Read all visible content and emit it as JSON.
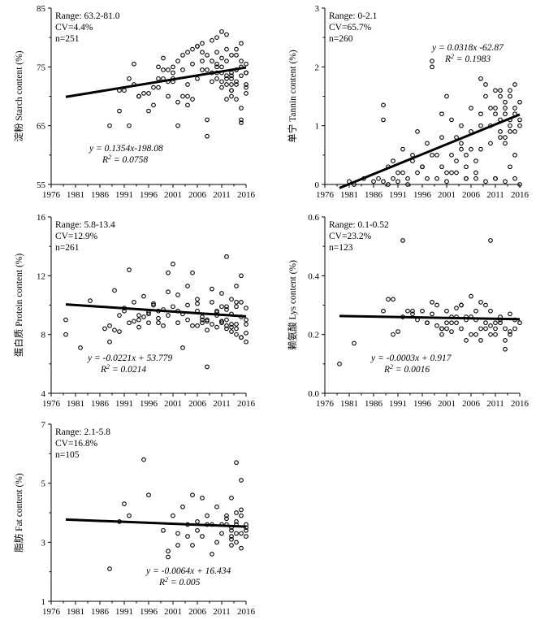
{
  "chart_data": [
    {
      "type": "scatter",
      "ylabel": "淀粉 Starch content (%)",
      "xlim": [
        1976,
        2016
      ],
      "ylim": [
        55,
        85
      ],
      "xticks": [
        1976,
        1981,
        1986,
        1991,
        1996,
        2001,
        2006,
        2011,
        2016
      ],
      "yticks": [
        55,
        65,
        75,
        85
      ],
      "annotations": [
        "Range: 63.2-81.0",
        "CV=4.4%",
        "n=251"
      ],
      "equation": "y = 0.1354x-198.08",
      "r2": "R2 = 0.0758",
      "trend": {
        "x": [
          1979,
          2016
        ],
        "y": [
          69.9,
          74.9
        ]
      },
      "x": [
        1988,
        1990,
        1991,
        1992,
        1993,
        1994,
        1996,
        1997,
        1998,
        1999,
        2000,
        2001,
        2002,
        2003,
        2004,
        2005,
        2006,
        2007,
        2008,
        2009,
        2010,
        2011,
        2012,
        2013,
        2014,
        2015,
        2016,
        1990,
        1993,
        1995,
        1997,
        1999,
        2001,
        2003,
        2005,
        2007,
        2009,
        2011,
        2013,
        2015,
        1998,
        2000,
        2002,
        2004,
        2006,
        2008,
        2010,
        2012,
        2014,
        2016,
        1996,
        1999,
        2002,
        2005,
        2008,
        2011,
        2014,
        2015,
        2013,
        2012,
        2010,
        2009,
        2007,
        2006,
        2004,
        2003,
        2001,
        2000,
        2015,
        2014,
        2013,
        2012,
        2011,
        2016,
        2015,
        2014,
        2013,
        2012,
        2008,
        2010,
        2011,
        2012,
        2013,
        2014,
        2015,
        2016,
        2009,
        2010,
        2011,
        2012,
        2013,
        2014,
        2015,
        2016,
        1992,
        1994,
        1998,
        2001,
        2004,
        2007,
        2010,
        2013,
        2016
      ],
      "y": [
        65.0,
        67.5,
        71.0,
        65.0,
        75.5,
        70.0,
        67.5,
        71.5,
        73.0,
        76.5,
        70.0,
        75.0,
        69.0,
        77.0,
        72.0,
        78.0,
        73.0,
        79.0,
        66.0,
        76.0,
        80.0,
        81.0,
        78.0,
        74.0,
        78.0,
        79.0,
        72.0,
        71.0,
        72.0,
        70.5,
        68.5,
        74.5,
        73.0,
        74.5,
        75.5,
        76.0,
        74.0,
        75.0,
        73.5,
        75.0,
        71.5,
        72.5,
        76.0,
        77.5,
        78.5,
        63.2,
        77.5,
        80.5,
        77.0,
        75.5,
        70.5,
        73.0,
        65.0,
        69.5,
        77.0,
        72.5,
        74.5,
        66.0,
        71.0,
        69.5,
        75.5,
        72.5,
        77.5,
        78.5,
        68.5,
        70.0,
        74.0,
        74.5,
        65.5,
        72.0,
        71.0,
        73.5,
        74.0,
        70.5,
        68.0,
        69.5,
        72.0,
        76.0,
        74.5,
        73.0,
        71.5,
        73.0,
        70.0,
        72.5,
        73.5,
        71.5,
        79.5,
        74.0,
        76.5,
        72.0,
        77.0,
        74.5,
        76.0,
        74.0,
        73.0,
        70.0,
        75.0,
        72.5,
        70.0,
        74.5,
        75.0,
        73.0,
        74.0
      ]
    },
    {
      "type": "scatter",
      "ylabel": "单宁 Tannin content (%)",
      "xlim": [
        1976,
        2016
      ],
      "ylim": [
        0,
        3
      ],
      "xticks": [
        1976,
        1981,
        1986,
        1991,
        1996,
        2001,
        2006,
        2011,
        2016
      ],
      "yticks": [
        0,
        1,
        2,
        3
      ],
      "annotations": [
        "Range: 0-2.1",
        "CV=65.7%",
        "n=260"
      ],
      "equation": "y = 0.0318x -62.87",
      "r2": "R2 = 0.1983",
      "trend": {
        "x": [
          1979,
          2016
        ],
        "y": [
          -0.06,
          1.19
        ]
      },
      "x": [
        1981,
        1982,
        1984,
        1986,
        1988,
        1988,
        1989,
        1990,
        1991,
        1992,
        1993,
        1994,
        1995,
        1996,
        1997,
        1998,
        1998,
        1999,
        2000,
        2000,
        2001,
        2002,
        2003,
        2004,
        2005,
        2005,
        2006,
        2007,
        2008,
        2008,
        2009,
        2010,
        2011,
        2011,
        2012,
        2012,
        2013,
        2013,
        2014,
        2014,
        2015,
        2015,
        2016,
        2016,
        1987,
        1989,
        1991,
        1993,
        1995,
        1997,
        1999,
        2001,
        2003,
        2005,
        2007,
        2009,
        2011,
        2013,
        2015,
        2016,
        2014,
        2012,
        2010,
        2008,
        2006,
        2004,
        2002,
        2000,
        1998,
        1996,
        1994,
        1992,
        1990,
        1988,
        2015,
        2014,
        2013,
        2012,
        2011,
        2010,
        2009,
        2008,
        2007,
        2006,
        2005,
        2004,
        2003,
        2002,
        2001,
        2015,
        2014,
        2013,
        2012,
        2011,
        2016,
        2015,
        2014,
        2013
      ],
      "y": [
        0.05,
        0.0,
        0.1,
        0.05,
        1.35,
        1.1,
        0.3,
        0.4,
        0.2,
        0.6,
        0.1,
        0.5,
        0.9,
        0.3,
        0.7,
        2.0,
        2.1,
        0.5,
        1.2,
        0.3,
        1.5,
        0.2,
        0.8,
        1.0,
        0.1,
        0.5,
        1.3,
        0.2,
        1.8,
        0.6,
        1.7,
        1.0,
        1.6,
        0.1,
        1.5,
        0.9,
        1.2,
        0.7,
        1.6,
        0.3,
        1.7,
        0.5,
        1.4,
        1.0,
        0.1,
        0.0,
        0.05,
        0.0,
        0.2,
        0.1,
        0.1,
        0.05,
        0.2,
        0.1,
        0.1,
        0.05,
        0.1,
        0.05,
        0.1,
        0.0,
        1.1,
        0.8,
        1.3,
        1.0,
        0.9,
        0.6,
        1.1,
        0.8,
        0.5,
        0.3,
        0.4,
        0.2,
        0.1,
        0.05,
        1.2,
        0.9,
        1.4,
        1.1,
        1.3,
        0.7,
        1.5,
        1.2,
        0.4,
        0.6,
        0.3,
        0.7,
        0.4,
        0.5,
        0.2,
        0.9,
        1.5,
        1.3,
        1.6,
        1.2,
        1.1,
        1.3,
        1.0,
        0.8
      ]
    },
    {
      "type": "scatter",
      "ylabel": "蛋白质 Protein content (%)",
      "xlim": [
        1976,
        2016
      ],
      "ylim": [
        4,
        16
      ],
      "xticks": [
        1976,
        1981,
        1986,
        1991,
        1996,
        2001,
        2006,
        2011,
        2016
      ],
      "yticks": [
        4,
        8,
        12,
        16
      ],
      "annotations": [
        "Range: 5.8-13.4",
        "CV=12.9%",
        "n=261"
      ],
      "equation": "y = -0.0221x + 53.779",
      "r2": "R2 = 0.0214",
      "trend": {
        "x": [
          1979,
          2016
        ],
        "y": [
          10.05,
          9.23
        ]
      },
      "x": [
        1979,
        1979,
        1982,
        1984,
        1987,
        1988,
        1989,
        1990,
        1991,
        1992,
        1993,
        1994,
        1995,
        1996,
        1997,
        1998,
        1999,
        2000,
        2001,
        2002,
        2003,
        2004,
        2005,
        2006,
        2007,
        2008,
        2009,
        2010,
        2011,
        2012,
        2013,
        2014,
        2015,
        2016,
        1988,
        1990,
        1992,
        1994,
        1996,
        1998,
        2000,
        2002,
        2004,
        2006,
        2008,
        2010,
        2012,
        2014,
        2016,
        2015,
        2014,
        2013,
        2012,
        2011,
        2010,
        2009,
        2008,
        2007,
        2006,
        2005,
        2004,
        2003,
        2002,
        2001,
        2000,
        1999,
        1998,
        1997,
        1996,
        1995,
        1994,
        1993,
        1991,
        1989,
        2016,
        2015,
        2014,
        2013,
        2012,
        2011,
        2010,
        2009,
        2008,
        2007,
        2006,
        2016,
        2015,
        2014,
        2013,
        2012,
        2011,
        2016,
        2015,
        2014,
        2013,
        2012,
        2011
      ],
      "y": [
        9.0,
        8.0,
        7.1,
        10.3,
        8.4,
        8.6,
        11.0,
        8.2,
        9.8,
        12.4,
        10.2,
        9.0,
        10.6,
        8.8,
        10.0,
        9.6,
        8.6,
        10.9,
        12.8,
        10.7,
        7.1,
        9.0,
        12.2,
        10.4,
        9.0,
        5.8,
        11.1,
        9.3,
        10.8,
        13.3,
        8.7,
        11.3,
        12.0,
        9.0,
        7.5,
        9.3,
        8.8,
        9.3,
        9.5,
        9.1,
        12.2,
        9.6,
        11.3,
        10.1,
        8.9,
        9.6,
        9.0,
        10.2,
        8.7,
        9.2,
        8.7,
        9.4,
        9.9,
        8.8,
        9.5,
        10.2,
        9.0,
        9.2,
        9.6,
        8.6,
        10.0,
        9.4,
        8.8,
        9.9,
        9.3,
        9.7,
        8.8,
        10.1,
        9.4,
        9.2,
        8.5,
        8.9,
        9.6,
        8.3,
        8.1,
        7.8,
        8.4,
        8.5,
        8.6,
        8.9,
        8.5,
        8.7,
        8.3,
        8.8,
        8.6,
        7.5,
        7.8,
        8.0,
        8.2,
        8.4,
        8.9,
        9.8,
        10.2,
        9.9,
        10.4,
        9.7,
        9.9
      ]
    },
    {
      "type": "scatter",
      "ylabel": "赖氨酸 Lys content (%)",
      "xlim": [
        1976,
        2016
      ],
      "ylim": [
        0,
        0.6
      ],
      "xticks": [
        1976,
        1981,
        1986,
        1991,
        1996,
        2001,
        2006,
        2011,
        2016
      ],
      "yticks": [
        0.0,
        0.2,
        0.4,
        0.6
      ],
      "annotations": [
        "Range: 0.1-0.52",
        "CV=23.2%",
        "n=123"
      ],
      "equation": "y = -0.0003x + 0.917",
      "r2": "R2 = 0.0016",
      "trend": {
        "x": [
          1979,
          2016
        ],
        "y": [
          0.263,
          0.252
        ]
      },
      "x": [
        1979,
        1982,
        1988,
        1989,
        1990,
        1991,
        1992,
        1992,
        1993,
        1994,
        1995,
        1996,
        1997,
        1998,
        1999,
        2000,
        2001,
        2002,
        2003,
        2004,
        2005,
        2006,
        2007,
        2008,
        2009,
        2010,
        2010,
        2011,
        2012,
        2013,
        2014,
        2015,
        2016,
        1990,
        1994,
        1997,
        1999,
        2001,
        2003,
        2005,
        2007,
        2009,
        2011,
        2013,
        2015,
        2014,
        2012,
        2010,
        2008,
        2006,
        2004,
        2002,
        2000,
        1998,
        2000,
        2002,
        2004,
        2006,
        2008,
        2010,
        2012,
        2014,
        2013,
        2011,
        2009,
        2007,
        2005,
        2003,
        2001
      ],
      "y": [
        0.1,
        0.17,
        0.28,
        0.32,
        0.32,
        0.21,
        0.26,
        0.52,
        0.28,
        0.27,
        0.25,
        0.28,
        0.24,
        0.31,
        0.23,
        0.22,
        0.24,
        0.26,
        0.29,
        0.3,
        0.25,
        0.33,
        0.25,
        0.31,
        0.3,
        0.52,
        0.2,
        0.22,
        0.25,
        0.15,
        0.27,
        0.22,
        0.24,
        0.2,
        0.28,
        0.24,
        0.3,
        0.28,
        0.26,
        0.26,
        0.28,
        0.24,
        0.2,
        0.22,
        0.25,
        0.21,
        0.24,
        0.28,
        0.22,
        0.26,
        0.22,
        0.21,
        0.22,
        0.27,
        0.2,
        0.24,
        0.3,
        0.2,
        0.18,
        0.23,
        0.26,
        0.2,
        0.18,
        0.24,
        0.22,
        0.2,
        0.18,
        0.24,
        0.22
      ]
    },
    {
      "type": "scatter",
      "ylabel": "脂肪 Fat content (%)",
      "xlim": [
        1976,
        2016
      ],
      "ylim": [
        1,
        7
      ],
      "xticks": [
        1976,
        1981,
        1986,
        1991,
        1996,
        2001,
        2006,
        2011,
        2016
      ],
      "yticks": [
        1,
        3,
        5,
        7
      ],
      "annotations": [
        "Range: 2.1-5.8",
        "CV=16.8%",
        "n=105"
      ],
      "equation": "y = -0.0064x + 16.434",
      "r2": "R2 = 0.005",
      "trend": {
        "x": [
          1979,
          2016
        ],
        "y": [
          3.77,
          3.53
        ]
      },
      "x": [
        1988,
        1990,
        1991,
        1992,
        1995,
        1996,
        1999,
        2000,
        2000,
        2001,
        2002,
        2003,
        2004,
        2005,
        2005,
        2006,
        2007,
        2007,
        2008,
        2009,
        2009,
        2010,
        2011,
        2012,
        2013,
        2013,
        2014,
        2014,
        2015,
        2015,
        2016,
        2016,
        2014,
        2013,
        2012,
        2011,
        2010,
        2008,
        2006,
        2004,
        2002,
        2015,
        2014,
        2013,
        2016,
        2015,
        2014,
        2013,
        2012,
        2016,
        2015,
        2014,
        2013
      ],
      "y": [
        2.1,
        3.7,
        4.3,
        3.9,
        5.8,
        4.6,
        3.4,
        2.5,
        2.7,
        3.9,
        2.9,
        4.2,
        3.6,
        4.6,
        2.9,
        3.7,
        4.5,
        3.2,
        3.9,
        3.6,
        2.6,
        4.2,
        3.3,
        3.9,
        4.5,
        2.9,
        5.7,
        3.6,
        5.1,
        3.3,
        3.6,
        3.2,
        4.0,
        3.5,
        3.8,
        3.6,
        3.0,
        3.6,
        3.4,
        3.2,
        3.3,
        4.1,
        3.3,
        3.4,
        3.5,
        2.8,
        3.0,
        3.1,
        3.6,
        3.4,
        3.9,
        3.7,
        3.2
      ]
    }
  ]
}
